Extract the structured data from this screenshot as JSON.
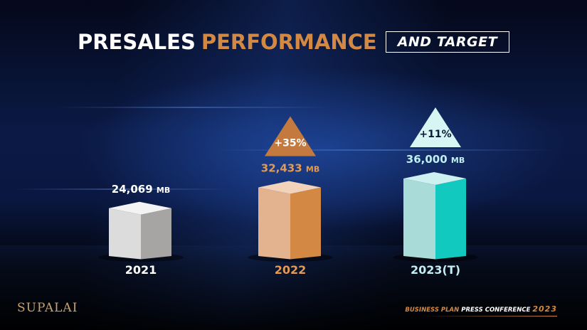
{
  "title": {
    "part1": "PRESALES",
    "part2": "PERFORMANCE",
    "boxed": "AND TARGET"
  },
  "chart_data": {
    "type": "bar",
    "categories": [
      "2021",
      "2022",
      "2023(T)"
    ],
    "values": [
      24069,
      32433,
      36000
    ],
    "value_labels": [
      "24,069",
      "32,433",
      "36,000"
    ],
    "unit": "MB",
    "growth": [
      null,
      "+35%",
      "+11%"
    ],
    "colors": {
      "bar_2021": "#d9d9d9",
      "bar_2022": "#d38943",
      "bar_2023": "#1ccfc4",
      "text_2021": "#ffffff",
      "text_2022": "#e29a57",
      "text_2023": "#bfeff0"
    }
  },
  "branding": {
    "logo": "SUPALAI",
    "footer_part1": "BUSINESS PLAN",
    "footer_part2": "PRESS CONFERENCE",
    "footer_year": "2023"
  }
}
